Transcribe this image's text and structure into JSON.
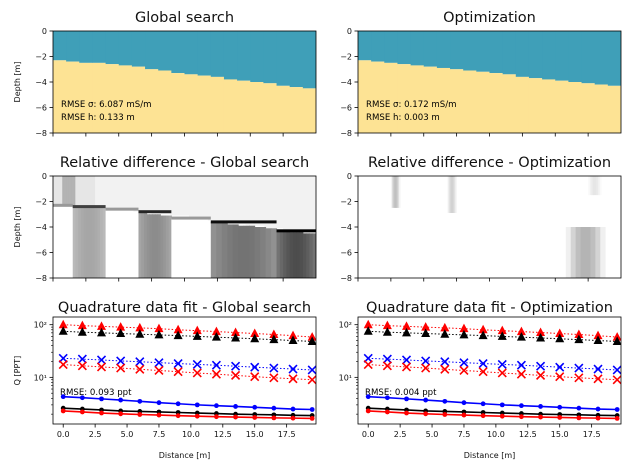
{
  "chart_data": [
    {
      "type": "heatmap",
      "title": "Global search",
      "ylabel": "Depth [m]",
      "xlim": [
        0,
        20
      ],
      "ylim": [
        -8,
        0
      ],
      "yticks": [
        "0",
        "−2",
        "−4",
        "−6",
        "−8"
      ],
      "x_tick_positions": [
        0,
        2.5,
        5,
        7.5,
        10,
        12.5,
        15,
        17.5
      ],
      "layer_boundary": {
        "x": [
          0,
          1,
          2,
          3,
          4,
          5,
          6,
          7,
          8,
          9,
          10,
          11,
          12,
          13,
          14,
          15,
          16,
          17,
          18,
          19
        ],
        "depth": [
          -2.3,
          -2.4,
          -2.5,
          -2.5,
          -2.6,
          -2.7,
          -2.8,
          -3.0,
          -3.1,
          -3.3,
          -3.4,
          -3.5,
          -3.6,
          -3.8,
          -3.9,
          -4.0,
          -4.1,
          -4.3,
          -4.4,
          -4.5
        ]
      },
      "colors": {
        "top_layer": "#3f9fb8",
        "bottom_layer": "#fde394"
      },
      "annotations": [
        "RMSE σ: 6.087 mS/m",
        "RMSE h: 0.133 m"
      ]
    },
    {
      "type": "heatmap",
      "title": "Optimization",
      "xlim": [
        0,
        20
      ],
      "ylim": [
        -8,
        0
      ],
      "yticks": [
        "0",
        "−2",
        "−4",
        "−6",
        "−8"
      ],
      "x_tick_positions": [
        0,
        2.5,
        5,
        7.5,
        10,
        12.5,
        15,
        17.5
      ],
      "layer_boundary": {
        "x": [
          0,
          1,
          2,
          3,
          4,
          5,
          6,
          7,
          8,
          9,
          10,
          11,
          12,
          13,
          14,
          15,
          16,
          17,
          18,
          19
        ],
        "depth": [
          -2.3,
          -2.4,
          -2.5,
          -2.6,
          -2.7,
          -2.8,
          -2.9,
          -3.0,
          -3.1,
          -3.2,
          -3.3,
          -3.4,
          -3.6,
          -3.7,
          -3.8,
          -3.9,
          -4.0,
          -4.1,
          -4.2,
          -4.3
        ]
      },
      "colors": {
        "top_layer": "#3f9fb8",
        "bottom_layer": "#fde394"
      },
      "annotations": [
        "RMSE σ: 0.172 mS/m",
        "RMSE h: 0.003 m"
      ]
    },
    {
      "type": "heatmap",
      "title": "Relative difference - Global search",
      "ylabel": "Depth [m]",
      "xlim": [
        0,
        20
      ],
      "ylim": [
        -8,
        0
      ],
      "yticks": [
        "0",
        "−2",
        "−4",
        "−6",
        "−8"
      ],
      "x_tick_positions": [
        0,
        2.5,
        5,
        7.5,
        10,
        12.5,
        15,
        17.5
      ],
      "colormap": "grayscale, white = no difference",
      "top_band": [
        {
          "x": [
            0,
            0.7
          ],
          "value": 0.1
        },
        {
          "x": [
            0.7,
            1.7
          ],
          "value": 0.3
        },
        {
          "x": [
            1.7,
            3.2
          ],
          "value": 0.1
        },
        {
          "x": [
            3.2,
            17.5
          ],
          "value": 0.05
        },
        {
          "x": [
            17.5,
            20
          ],
          "value": 0.05
        }
      ],
      "bottom_band": [
        {
          "x": [
            0,
            1.5
          ],
          "value": 0.0
        },
        {
          "x": [
            1.5,
            4.0
          ],
          "value": 0.35
        },
        {
          "x": [
            4.0,
            6.5
          ],
          "value": 0.0
        },
        {
          "x": [
            6.5,
            9.0
          ],
          "value": 0.45
        },
        {
          "x": [
            9.0,
            12.0
          ],
          "value": 0.0
        },
        {
          "x": [
            12.0,
            17.0
          ],
          "value": 0.55
        },
        {
          "x": [
            17.0,
            20.0
          ],
          "value": 0.7
        }
      ]
    },
    {
      "type": "heatmap",
      "title": "Relative difference - Optimization",
      "xlim": [
        0,
        20
      ],
      "ylim": [
        -8,
        0
      ],
      "yticks": [
        "0",
        "−2",
        "−4",
        "−6",
        "−8"
      ],
      "x_tick_positions": [
        0,
        2.5,
        5,
        7.5,
        10,
        12.5,
        15,
        17.5
      ],
      "colormap": "grayscale, white = no difference",
      "blobs": [
        {
          "x": [
            2.5,
            3.2
          ],
          "depth": [
            0,
            -2.5
          ],
          "value": 0.25
        },
        {
          "x": [
            6.8,
            7.5
          ],
          "depth": [
            0,
            -2.9
          ],
          "value": 0.18
        },
        {
          "x": [
            17.5,
            18.5
          ],
          "depth": [
            0,
            -1.5
          ],
          "value": 0.1
        },
        {
          "x": [
            15.8,
            18.8
          ],
          "depth": [
            -4.0,
            -8.0
          ],
          "value": 0.3
        }
      ]
    },
    {
      "type": "scatter",
      "title": "Quadrature data fit - Global search",
      "xlabel": "Distance [m]",
      "ylabel": "Q [PPT]",
      "yscale": "log",
      "xlim": [
        -0.8,
        19.8
      ],
      "ylim": [
        1.3,
        140
      ],
      "xticks": [
        "0.0",
        "2.5",
        "5.0",
        "7.5",
        "10.0",
        "12.5",
        "15.0",
        "17.5"
      ],
      "yticks": [
        "10¹",
        "10²"
      ],
      "x": [
        0,
        1.5,
        3,
        4.5,
        6,
        7.5,
        9,
        10.5,
        12,
        13.5,
        15,
        16.5,
        18,
        19.5
      ],
      "series": [
        {
          "color": "#ff0000",
          "marker": "triangle",
          "values": [
            100,
            96,
            93,
            90,
            87,
            84,
            80,
            77,
            74,
            71,
            68,
            65,
            62,
            58
          ]
        },
        {
          "color": "#000000",
          "marker": "triangle",
          "values": [
            75,
            72,
            70,
            68,
            66,
            64,
            62,
            60,
            58,
            56,
            54,
            52,
            50,
            48
          ]
        },
        {
          "color": "#0000ff",
          "marker": "x",
          "values": [
            23,
            22.2,
            21.4,
            20.5,
            19.8,
            19,
            18.3,
            17.6,
            17,
            16.3,
            15.6,
            15,
            14.4,
            13.8
          ]
        },
        {
          "color": "#ff0000",
          "marker": "x",
          "values": [
            17.5,
            16.6,
            15.8,
            15,
            14.2,
            13.5,
            12.8,
            12.1,
            11.5,
            10.9,
            10.3,
            9.8,
            9.4,
            9.0
          ]
        },
        {
          "color": "#0000ff",
          "marker": "dot",
          "values": [
            4.3,
            4.1,
            3.9,
            3.7,
            3.5,
            3.3,
            3.15,
            3.0,
            2.9,
            2.8,
            2.7,
            2.6,
            2.5,
            2.45
          ]
        },
        {
          "color": "#000000",
          "marker": "dot",
          "values": [
            2.6,
            2.5,
            2.4,
            2.3,
            2.25,
            2.2,
            2.15,
            2.1,
            2.05,
            2.0,
            1.97,
            1.94,
            1.9,
            1.88
          ]
        },
        {
          "color": "#ff0000",
          "marker": "dot",
          "values": [
            2.3,
            2.2,
            2.1,
            2.03,
            1.97,
            1.92,
            1.87,
            1.83,
            1.79,
            1.76,
            1.73,
            1.7,
            1.68,
            1.66
          ]
        }
      ],
      "annotation": "RMSE: 0.093 ppt"
    },
    {
      "type": "scatter",
      "title": "Quadrature data fit - Optimization",
      "xlabel": "Distance [m]",
      "yscale": "log",
      "xlim": [
        -0.8,
        19.8
      ],
      "ylim": [
        1.3,
        140
      ],
      "xticks": [
        "0.0",
        "2.5",
        "5.0",
        "7.5",
        "10.0",
        "12.5",
        "15.0",
        "17.5"
      ],
      "yticks": [
        "10¹",
        "10²"
      ],
      "x": [
        0,
        1.5,
        3,
        4.5,
        6,
        7.5,
        9,
        10.5,
        12,
        13.5,
        15,
        16.5,
        18,
        19.5
      ],
      "series": [
        {
          "color": "#ff0000",
          "marker": "triangle",
          "values": [
            100,
            96,
            93,
            90,
            87,
            84,
            80,
            77,
            74,
            71,
            68,
            65,
            62,
            58
          ]
        },
        {
          "color": "#000000",
          "marker": "triangle",
          "values": [
            75,
            72,
            70,
            68,
            66,
            64,
            62,
            60,
            58,
            56,
            54,
            52,
            50,
            48
          ]
        },
        {
          "color": "#0000ff",
          "marker": "x",
          "values": [
            23,
            22.2,
            21.4,
            20.5,
            19.8,
            19,
            18.3,
            17.6,
            17,
            16.3,
            15.6,
            15,
            14.4,
            13.8
          ]
        },
        {
          "color": "#ff0000",
          "marker": "x",
          "values": [
            17.5,
            16.6,
            15.8,
            15,
            14.2,
            13.5,
            12.8,
            12.1,
            11.5,
            10.9,
            10.3,
            9.8,
            9.4,
            9.0
          ]
        },
        {
          "color": "#0000ff",
          "marker": "dot",
          "values": [
            4.3,
            4.1,
            3.9,
            3.7,
            3.5,
            3.3,
            3.15,
            3.0,
            2.9,
            2.8,
            2.7,
            2.6,
            2.5,
            2.45
          ]
        },
        {
          "color": "#000000",
          "marker": "dot",
          "values": [
            2.6,
            2.5,
            2.4,
            2.3,
            2.25,
            2.2,
            2.15,
            2.1,
            2.05,
            2.0,
            1.97,
            1.94,
            1.9,
            1.88
          ]
        },
        {
          "color": "#ff0000",
          "marker": "dot",
          "values": [
            2.3,
            2.2,
            2.1,
            2.03,
            1.97,
            1.92,
            1.87,
            1.83,
            1.79,
            1.76,
            1.73,
            1.7,
            1.68,
            1.66
          ]
        }
      ],
      "annotation": "RMSE: 0.004 ppt"
    }
  ]
}
